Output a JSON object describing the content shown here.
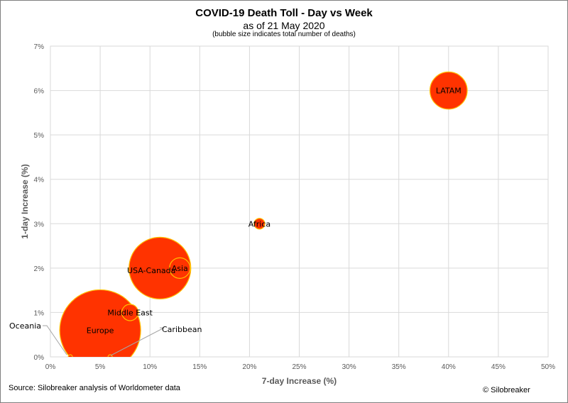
{
  "chart_data": {
    "type": "scatter",
    "title": "COVID-19 Death Toll - Day vs Week",
    "subtitle": "as of 21 May 2020",
    "note": "(bubble size indicates total number of deaths)",
    "xlabel": "7-day Increase (%)",
    "ylabel": "1-day Increase (%)",
    "xlim": [
      0,
      50
    ],
    "ylim": [
      0,
      7
    ],
    "x_ticks": [
      "0%",
      "5%",
      "10%",
      "15%",
      "20%",
      "25%",
      "30%",
      "35%",
      "40%",
      "45%",
      "50%"
    ],
    "y_ticks": [
      "0%",
      "1%",
      "2%",
      "3%",
      "4%",
      "5%",
      "6%",
      "7%"
    ],
    "grid": true,
    "bubble_color": "#ff3300",
    "bubble_edge": "#ffc000",
    "points": [
      {
        "label": "Europe",
        "x": 5,
        "y": 0.6,
        "size": 170000
      },
      {
        "label": "USA-Canada",
        "x": 11,
        "y": 2.0,
        "size": 99000
      },
      {
        "label": "LATAM",
        "x": 40,
        "y": 6.0,
        "size": 36000
      },
      {
        "label": "Asia",
        "x": 13,
        "y": 2.0,
        "size": 11000
      },
      {
        "label": "Middle East",
        "x": 8,
        "y": 1.0,
        "size": 7000
      },
      {
        "label": "Africa",
        "x": 21,
        "y": 3.0,
        "size": 3000
      },
      {
        "label": "Oceania",
        "x": 2,
        "y": 0.0,
        "size": 130
      },
      {
        "label": "Caribbean",
        "x": 6,
        "y": 0.0,
        "size": 100
      }
    ]
  },
  "footer": {
    "source": "Source: Silobreaker analysis of Worldometer data",
    "copyright": "© Silobreaker"
  }
}
